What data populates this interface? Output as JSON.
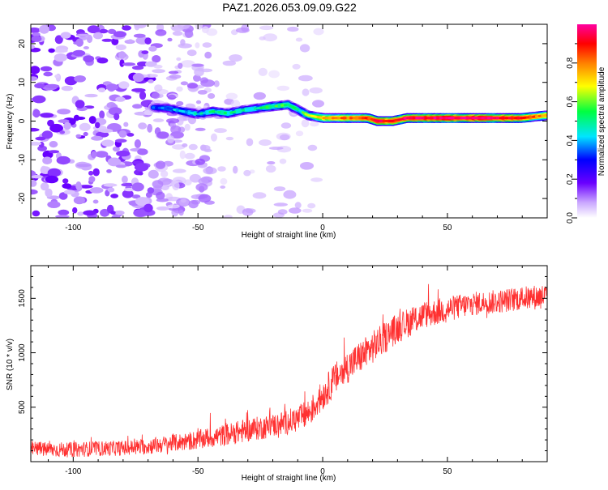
{
  "figure_title": "PAZ1.2026.053.09.09.G22",
  "chart_data": [
    {
      "type": "heatmap",
      "title": "PAZ1.2026.053.09.09.G22",
      "xlabel": "Height of straight line (km)",
      "ylabel": "Frequency (Hz)",
      "xlim": [
        -117,
        90
      ],
      "ylim": [
        -25,
        25
      ],
      "xticks": [
        -100,
        -50,
        0,
        50
      ],
      "yticks": [
        -20,
        -10,
        0,
        10,
        20
      ],
      "colorbar": {
        "label": "Normalized spectral amplitude",
        "range": [
          0,
          1
        ],
        "ticks": [
          "0.0",
          "0.2",
          "0.4",
          "0.6",
          "0.8"
        ],
        "tick_values": [
          0.0,
          0.2,
          0.4,
          0.6,
          0.8
        ],
        "colors": [
          "#ffffff",
          "#c9a6ff",
          "#6a00ff",
          "#0000ff",
          "#00e5ff",
          "#00ff40",
          "#ffff00",
          "#ff7f00",
          "#ff0000",
          "#ff00a0"
        ]
      },
      "ridge": {
        "x": [
          -68,
          -62,
          -56,
          -50,
          -44,
          -38,
          -32,
          -26,
          -20,
          -14,
          -10,
          -6,
          0,
          10,
          18,
          22,
          28,
          34,
          50,
          70,
          80,
          90
        ],
        "freq_hz": [
          3.5,
          3.3,
          2.5,
          1.8,
          2.5,
          2.0,
          2.8,
          3.3,
          3.8,
          4.2,
          3.0,
          1.5,
          0.8,
          0.8,
          0.8,
          0.0,
          0.0,
          0.8,
          0.8,
          0.8,
          0.8,
          1.5
        ],
        "amplitude": [
          0.35,
          0.4,
          0.45,
          0.45,
          0.5,
          0.5,
          0.5,
          0.5,
          0.55,
          0.55,
          0.5,
          0.6,
          0.75,
          0.8,
          0.85,
          0.9,
          0.9,
          0.95,
          0.97,
          0.95,
          0.9,
          0.7
        ]
      }
    },
    {
      "type": "line",
      "xlabel": "Height of straight line (km)",
      "ylabel": "SNR (10 * v/v)",
      "xlim": [
        -117,
        90
      ],
      "ylim": [
        0,
        1800
      ],
      "xticks": [
        -100,
        -50,
        0,
        50
      ],
      "yticks": [
        500,
        1000,
        1500
      ],
      "series": [
        {
          "name": "SNR",
          "color": "#ff3030",
          "x": [
            -117,
            -110,
            -100,
            -90,
            -80,
            -70,
            -60,
            -50,
            -40,
            -30,
            -20,
            -10,
            -5,
            0,
            5,
            10,
            20,
            30,
            40,
            50,
            60,
            70,
            80,
            90
          ],
          "y": [
            120,
            110,
            110,
            120,
            125,
            140,
            170,
            200,
            240,
            290,
            330,
            390,
            460,
            610,
            760,
            870,
            1050,
            1230,
            1340,
            1400,
            1450,
            1470,
            1500,
            1520
          ],
          "noise_amplitude": [
            70,
            70,
            70,
            70,
            70,
            75,
            80,
            90,
            100,
            110,
            110,
            120,
            130,
            140,
            150,
            150,
            150,
            140,
            130,
            120,
            110,
            110,
            110,
            120
          ]
        }
      ]
    }
  ]
}
